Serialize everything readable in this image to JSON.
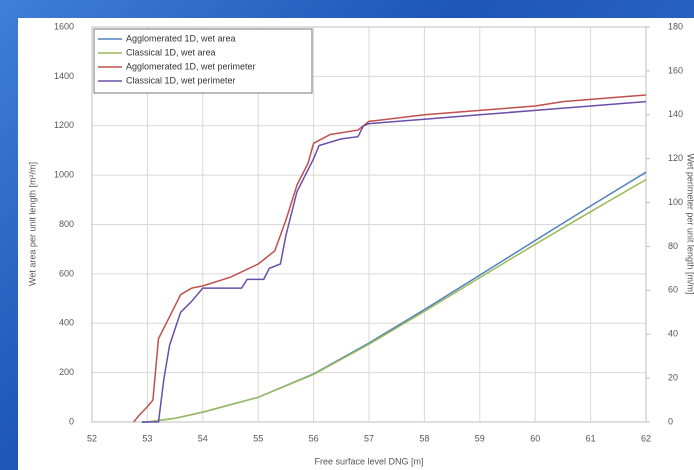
{
  "chart_data": {
    "type": "line",
    "xlabel": "Free surface level DNG [m]",
    "ylabel": "Wet area per unit length [m²/m]",
    "y2label": "Wet perimeter per unit length [m/m]",
    "xlim": [
      52,
      62
    ],
    "xticks": [
      52,
      53,
      54,
      55,
      56,
      57,
      58,
      59,
      60,
      61,
      62
    ],
    "ylim": [
      0,
      1600
    ],
    "yticks": [
      0,
      200,
      400,
      600,
      800,
      1000,
      1200,
      1400,
      1600
    ],
    "y2lim": [
      0,
      180
    ],
    "y2ticks": [
      0,
      20,
      40,
      60,
      80,
      100,
      120,
      140,
      160,
      180
    ],
    "grid": true,
    "legend": "upper left",
    "series": [
      {
        "name": "Agglomerated 1D, wet area",
        "color": "#4f81bd",
        "x": [
          52.9,
          53.0,
          53.5,
          54,
          55,
          56,
          57,
          58,
          59,
          60,
          61,
          62
        ],
        "values": [
          0,
          0,
          15,
          40,
          100,
          195,
          320,
          455,
          595,
          735,
          875,
          1012
        ]
      },
      {
        "name": "Classical 1D, wet area",
        "color": "#9bbb59",
        "x": [
          52.9,
          53.0,
          53.5,
          54,
          55,
          56,
          57,
          58,
          59,
          60,
          61,
          62
        ],
        "values": [
          0,
          0,
          15,
          40,
          100,
          193,
          315,
          448,
          585,
          720,
          852,
          982
        ]
      },
      {
        "name": "Agglomerated 1D, wet perimeter",
        "color": "#c0504d",
        "axis": "y2",
        "x": [
          52.75,
          52.85,
          53.0,
          53.1,
          53.2,
          53.4,
          53.6,
          53.8,
          54,
          54.5,
          55,
          55.3,
          55.5,
          55.7,
          55.9,
          56.0,
          56.3,
          56.8,
          57,
          58,
          59,
          60,
          60.5,
          61,
          62
        ],
        "values": [
          0,
          3,
          7,
          10,
          38,
          48,
          58,
          61,
          62,
          66,
          72,
          78,
          92,
          108,
          118,
          127,
          131,
          133,
          137,
          140,
          142,
          144,
          146,
          147,
          149
        ]
      },
      {
        "name": "Classical 1D, wet perimeter",
        "color": "#6a4fa8",
        "axis": "y2",
        "x": [
          52.9,
          53.2,
          53.3,
          53.4,
          53.6,
          53.8,
          54,
          54.7,
          54.8,
          55.1,
          55.2,
          55.4,
          55.5,
          55.7,
          56,
          56.1,
          56.5,
          56.8,
          56.9,
          57,
          58,
          59,
          60,
          61,
          62
        ],
        "values": [
          0,
          0,
          20,
          35,
          50,
          55,
          61,
          61,
          65,
          65,
          70,
          72,
          85,
          105,
          120,
          126,
          129,
          130,
          135,
          136,
          138,
          140,
          142,
          144,
          146
        ]
      }
    ]
  }
}
